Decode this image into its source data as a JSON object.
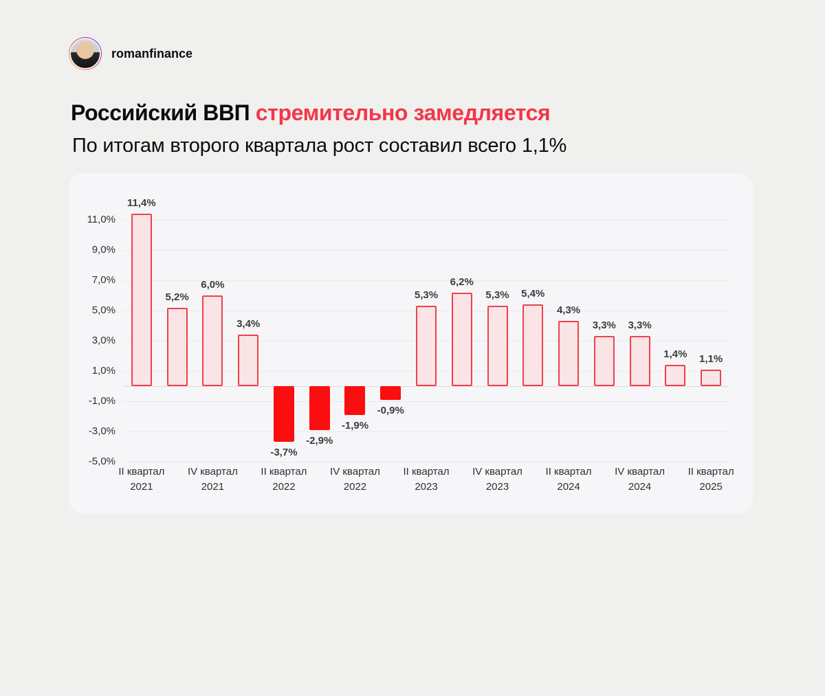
{
  "header": {
    "username": "romanfinance"
  },
  "title": {
    "black": "Российский ВВП ",
    "red": "стремительно замедляется"
  },
  "subtitle": "По итогам второго квартала рост составил всего 1,1%",
  "chart_data": {
    "type": "bar",
    "title": "Российский ВВП стремительно замедляется",
    "subtitle": "По итогам второго квартала рост составил всего 1,1%",
    "values": [
      11.4,
      5.2,
      6.0,
      3.4,
      -3.7,
      -2.9,
      -1.9,
      -0.9,
      5.3,
      6.2,
      5.3,
      5.4,
      4.3,
      3.3,
      3.3,
      1.4,
      1.1
    ],
    "value_labels": [
      "11,4%",
      "5,2%",
      "6,0%",
      "3,4%",
      "-3,7%",
      "-2,9%",
      "-1,9%",
      "-0,9%",
      "5,3%",
      "6,2%",
      "5,3%",
      "5,4%",
      "4,3%",
      "3,3%",
      "3,3%",
      "1,4%",
      "1,1%"
    ],
    "x_ticks": [
      {
        "index": 0,
        "lines": [
          "II квартал",
          "2021"
        ]
      },
      {
        "index": 2,
        "lines": [
          "IV квартал",
          "2021"
        ]
      },
      {
        "index": 4,
        "lines": [
          "II квартал",
          "2022"
        ]
      },
      {
        "index": 6,
        "lines": [
          "IV квартал",
          "2022"
        ]
      },
      {
        "index": 8,
        "lines": [
          "II квартал",
          "2023"
        ]
      },
      {
        "index": 10,
        "lines": [
          "IV квартал",
          "2023"
        ]
      },
      {
        "index": 12,
        "lines": [
          "II квартал",
          "2024"
        ]
      },
      {
        "index": 14,
        "lines": [
          "IV квартал",
          "2024"
        ]
      },
      {
        "index": 16,
        "lines": [
          "II квартал",
          "2025"
        ]
      }
    ],
    "y_ticks": [
      {
        "v": 11,
        "label": "11,0%"
      },
      {
        "v": 9,
        "label": "9,0%"
      },
      {
        "v": 7,
        "label": "7,0%"
      },
      {
        "v": 5,
        "label": "5,0%"
      },
      {
        "v": 3,
        "label": "3,0%"
      },
      {
        "v": 1,
        "label": "1,0%"
      },
      {
        "v": -1,
        "label": "-1,0%"
      },
      {
        "v": -3,
        "label": "-3,0%"
      },
      {
        "v": -5,
        "label": "-5,0%"
      }
    ],
    "ylim": [
      -6,
      12
    ],
    "grid": true,
    "legend": "none",
    "colors": {
      "positive_fill": "#fbe4e6",
      "positive_border": "#ef404b",
      "negative_fill": "#fc0d0f",
      "value_label": "#3c3c3e",
      "accent_red": "#f3364a"
    }
  }
}
